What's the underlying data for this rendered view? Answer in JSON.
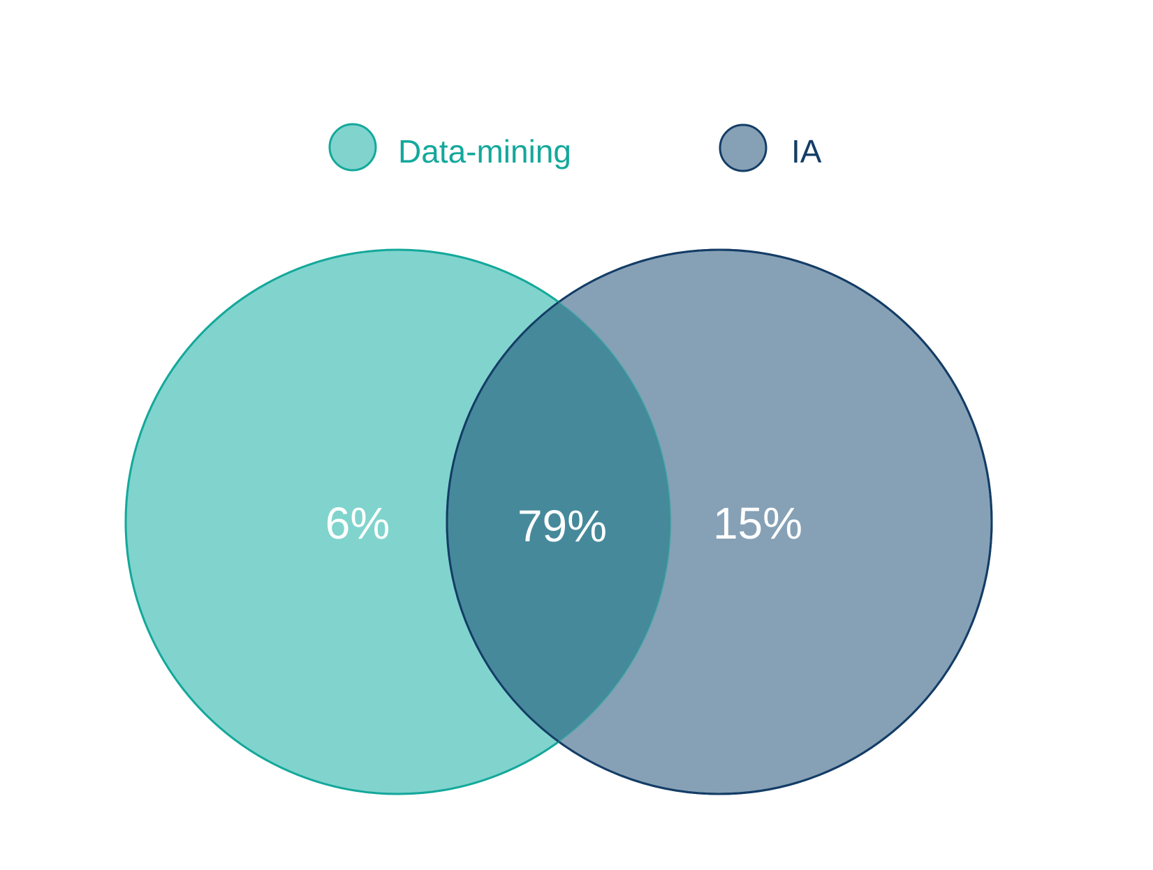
{
  "legend": {
    "items": [
      {
        "label": "Data-mining",
        "fill": "#80d4cd",
        "stroke": "#14a89b",
        "text_color": "#14a89b"
      },
      {
        "label": "IA",
        "fill": "#86a1b6",
        "stroke": "#143d66",
        "text_color": "#143d66"
      }
    ]
  },
  "sets": [
    {
      "name": "Data-mining",
      "fill": "#80d4cd",
      "stroke": "#14a89b"
    },
    {
      "name": "IA",
      "fill": "#86a1b6",
      "stroke": "#143d66"
    }
  ],
  "overlap_color": "#46899b",
  "regions": {
    "left_only": "6%",
    "intersection": "79%",
    "right_only": "15%"
  }
}
